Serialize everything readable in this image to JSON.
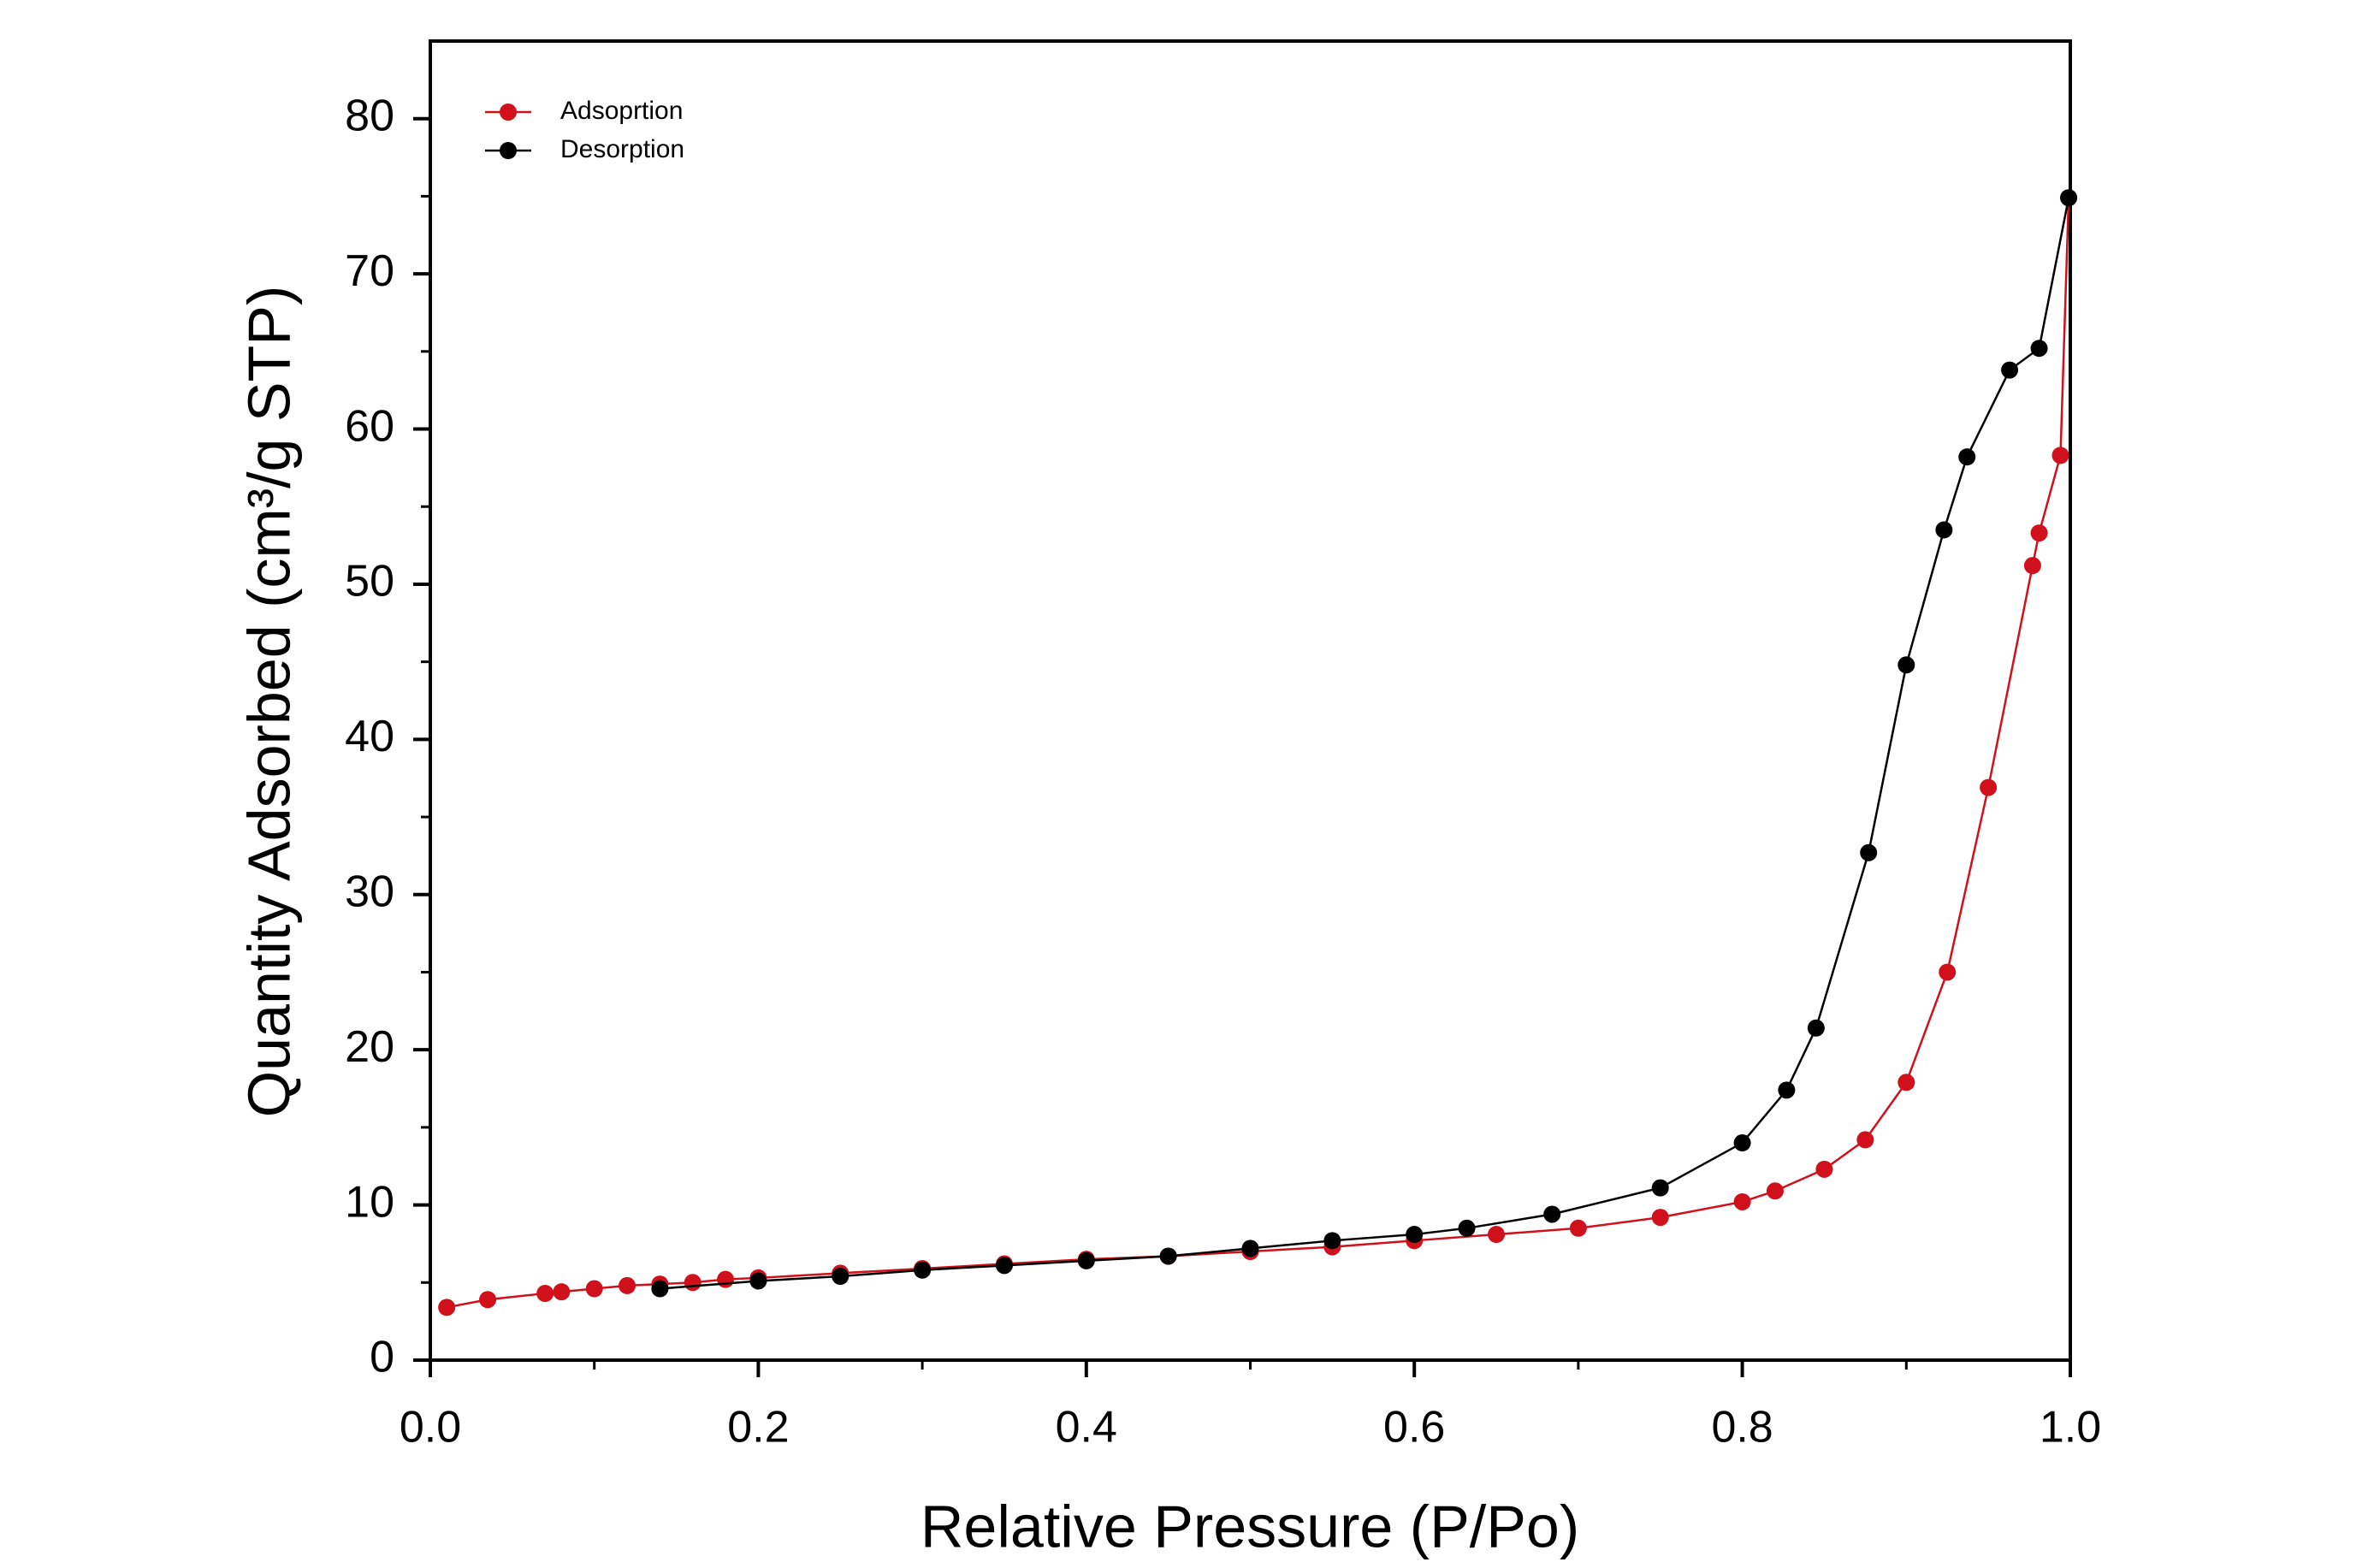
{
  "chart_data": {
    "type": "scatter-line",
    "x_label": "Relative Pressure (P/Po)",
    "y_label": "Quantity Adsorbed (cm³/g STP)",
    "xlim": [
      0,
      1
    ],
    "ylim": [
      0,
      85
    ],
    "xticks": [
      {
        "value": 0,
        "label": "0.0"
      },
      0.2,
      0.4,
      0.6,
      0.8,
      {
        "value": 1,
        "label": "1.0"
      }
    ],
    "yticks": [
      0,
      10,
      20,
      30,
      40,
      50,
      60,
      70,
      80
    ],
    "legend": "top-left",
    "series": [
      {
        "name": "Adsoprtion",
        "color": "#d0111b",
        "x": [
          0.01,
          0.035,
          0.07,
          0.08,
          0.1,
          0.12,
          0.14,
          0.16,
          0.18,
          0.2,
          0.25,
          0.3,
          0.35,
          0.4,
          0.45,
          0.5,
          0.55,
          0.6,
          0.65,
          0.7,
          0.75,
          0.8,
          0.82,
          0.85,
          0.875,
          0.9,
          0.925,
          0.95,
          0.977,
          0.981,
          0.994,
          0.999
        ],
        "values": [
          3.4,
          3.9,
          4.3,
          4.4,
          4.6,
          4.8,
          4.9,
          5.0,
          5.2,
          5.3,
          5.6,
          5.9,
          6.2,
          6.5,
          6.7,
          7.0,
          7.3,
          7.7,
          8.1,
          8.5,
          9.2,
          10.2,
          10.9,
          12.3,
          14.2,
          17.9,
          25.0,
          36.9,
          51.2,
          53.3,
          58.3,
          74.9
        ]
      },
      {
        "name": "Desorption",
        "color": "#000000",
        "x": [
          0.999,
          0.981,
          0.963,
          0.937,
          0.923,
          0.9,
          0.877,
          0.845,
          0.827,
          0.8,
          0.75,
          0.684,
          0.632,
          0.6,
          0.55,
          0.5,
          0.45,
          0.4,
          0.35,
          0.3,
          0.25,
          0.2,
          0.14
        ],
        "values": [
          74.9,
          65.2,
          63.8,
          58.2,
          53.5,
          44.8,
          32.7,
          21.4,
          17.4,
          14.0,
          11.1,
          9.4,
          8.5,
          8.1,
          7.7,
          7.2,
          6.7,
          6.4,
          6.1,
          5.8,
          5.4,
          5.1,
          4.6
        ]
      }
    ]
  }
}
